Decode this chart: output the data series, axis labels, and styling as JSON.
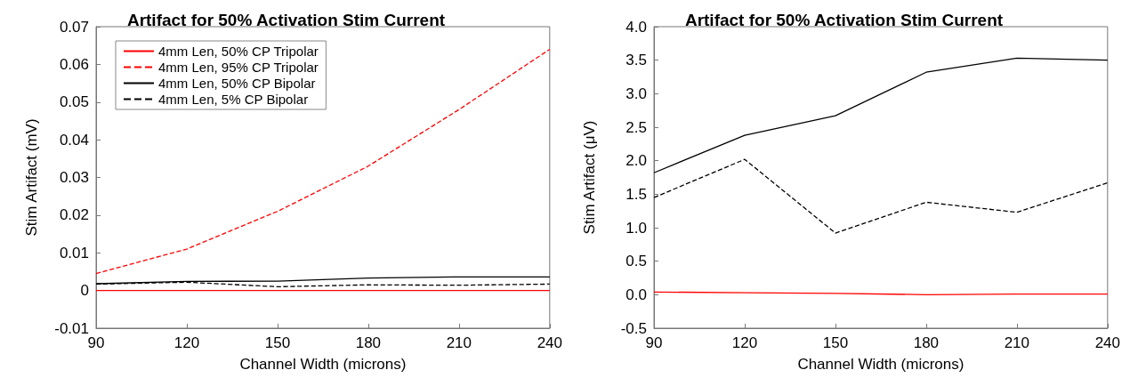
{
  "chart_data": [
    {
      "type": "line",
      "title": "Artifact for 50% Activation Stim Current",
      "xlabel": "Channel Width (microns)",
      "ylabel": "Stim Artifact (mV)",
      "x": [
        90,
        120,
        150,
        180,
        210,
        240
      ],
      "xlim": [
        90,
        240
      ],
      "xticks": [
        90,
        120,
        150,
        180,
        210,
        240
      ],
      "ylim": [
        -0.01,
        0.07
      ],
      "yticks": [
        -0.01,
        0,
        0.01,
        0.02,
        0.03,
        0.04,
        0.05,
        0.06,
        0.07
      ],
      "grid": false,
      "legend": "top left",
      "marker": "none",
      "series": [
        {
          "name": "4mm Len, 50% CP Tripolar",
          "color": "#ff0000",
          "line_style": "solid",
          "values": [
            0,
            0,
            0,
            0,
            0,
            0
          ]
        },
        {
          "name": "4mm Len, 95% CP Tripolar",
          "color": "#ff0000",
          "line_style": "dashed",
          "values": [
            0.0045,
            0.011,
            0.021,
            0.033,
            0.048,
            0.064
          ]
        },
        {
          "name": "4mm Len, 50% CP Bipolar",
          "color": "#000000",
          "line_style": "solid",
          "values": [
            0.0018,
            0.0024,
            0.0025,
            0.0033,
            0.0036,
            0.0036
          ]
        },
        {
          "name": "4mm Len, 5% CP Bipolar",
          "color": "#000000",
          "line_style": "dashed",
          "values": [
            0.0017,
            0.0022,
            0.001,
            0.0015,
            0.0014,
            0.0017
          ]
        }
      ]
    },
    {
      "type": "line",
      "title": "Artifact for 50% Activation Stim Current",
      "xlabel": "Channel Width (microns)",
      "ylabel": "Stim Artifact (μV)",
      "x": [
        90,
        120,
        150,
        180,
        210,
        240
      ],
      "xlim": [
        90,
        240
      ],
      "xticks": [
        90,
        120,
        150,
        180,
        210,
        240
      ],
      "ylim": [
        -0.5,
        4
      ],
      "yticks": [
        -0.5,
        {
          "value": 0,
          "label": "0.0"
        },
        0.5,
        {
          "value": 1,
          "label": "1.0"
        },
        1.5,
        {
          "value": 2,
          "label": "2.0"
        },
        2.5,
        {
          "value": 3,
          "label": "3.0"
        },
        3.5,
        {
          "value": 4,
          "label": "4.0"
        }
      ],
      "grid": false,
      "legend": false,
      "marker": "none",
      "series": [
        {
          "color": "#ff0000",
          "line_style": "solid",
          "values": [
            0.04,
            0.03,
            0.02,
            0.0,
            0.01,
            0.01
          ]
        },
        {
          "color": "#000000",
          "line_style": "dashed",
          "values": [
            1.45,
            2.02,
            0.92,
            1.38,
            1.23,
            1.67
          ]
        },
        {
          "color": "#000000",
          "line_style": "solid",
          "values": [
            1.82,
            2.38,
            2.67,
            3.32,
            3.53,
            3.5
          ]
        }
      ]
    }
  ]
}
